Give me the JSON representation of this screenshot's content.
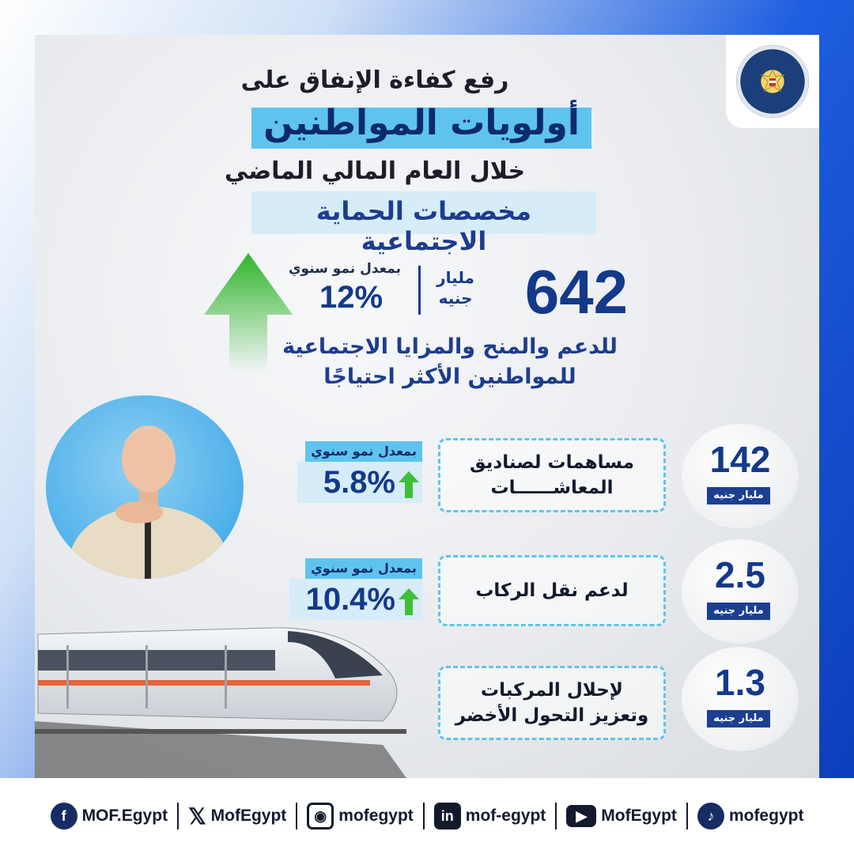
{
  "header": {
    "line1": "رفع كفاءة الإنفاق على",
    "line2": "أولويات المواطنين",
    "line3": "خلال العام المالي الماضي",
    "line4": "مخصصات الحماية الاجتماعية"
  },
  "headline": {
    "amount": "642",
    "unit": "مليار جنيه",
    "rate_label": "بمعدل نمو سنوي",
    "rate": "12%",
    "description_1": "للدعم والمنح والمزايا الاجتماعية",
    "description_2": "للمواطنين الأكثر احتياجًا"
  },
  "items": [
    {
      "value": "142",
      "unit": "مليار جنيه",
      "label_1": "مساهمات لصناديق",
      "label_2": "المعاشــــــات",
      "rate_label": "بمعدل نمو سنوي",
      "rate": "5.8%"
    },
    {
      "value": "2.5",
      "unit": "مليار جنيه",
      "label_1": "لدعم نقل الركاب",
      "label_2": "",
      "rate_label": "بمعدل نمو سنوي",
      "rate": "10.4%"
    },
    {
      "value": "1.3",
      "unit": "مليار جنيه",
      "label_1": "لإحلال المركبات",
      "label_2": "وتعزيز التحول الأخضر",
      "rate_label": "",
      "rate": ""
    }
  ],
  "logo": {
    "text": "MINISTRY OF FINANCE"
  },
  "footer": {
    "facebook": "MOF.Egypt",
    "x": "MofEgypt",
    "instagram": "mofegypt",
    "linkedin": "mof-egypt",
    "youtube": "MofEgypt",
    "tiktok": "mofegypt"
  },
  "colors": {
    "navy": "#13398a",
    "cyan": "#5ec4ef",
    "green": "#3fbf3a",
    "blue": "#0a3db8"
  },
  "icons": [
    "facebook-icon",
    "x-icon",
    "instagram-icon",
    "linkedin-icon",
    "youtube-icon",
    "tiktok-icon",
    "green-up-arrow-icon"
  ]
}
